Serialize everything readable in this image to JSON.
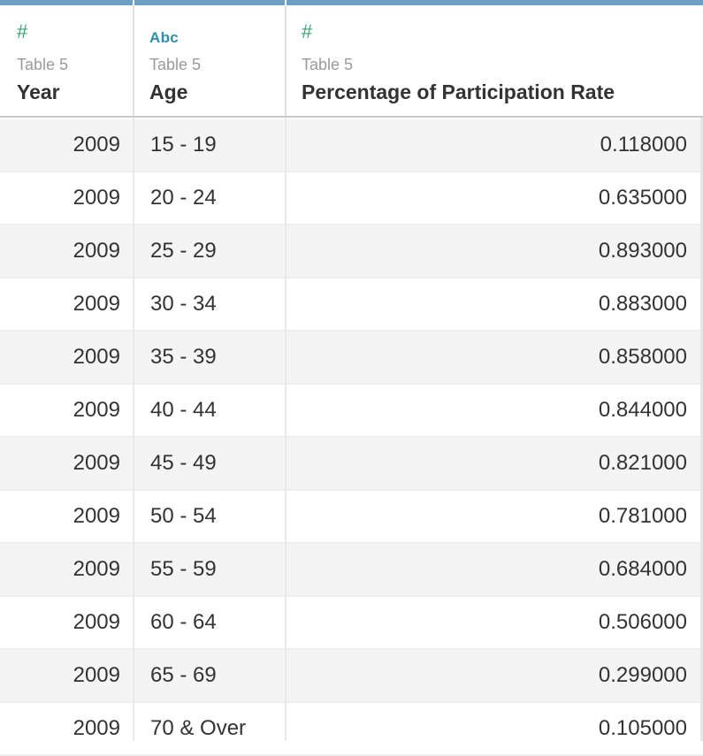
{
  "columns": [
    {
      "type_icon": "#",
      "source": "Table 5",
      "name": "Year"
    },
    {
      "type_icon": "Abc",
      "source": "Table 5",
      "name": "Age"
    },
    {
      "type_icon": "#",
      "source": "Table 5",
      "name": "Percentage of Participation Rate"
    }
  ],
  "rows": [
    {
      "year": "2009",
      "age": "15 - 19",
      "rate": "0.118000"
    },
    {
      "year": "2009",
      "age": "20 - 24",
      "rate": "0.635000"
    },
    {
      "year": "2009",
      "age": "25 - 29",
      "rate": "0.893000"
    },
    {
      "year": "2009",
      "age": "30 - 34",
      "rate": "0.883000"
    },
    {
      "year": "2009",
      "age": "35 - 39",
      "rate": "0.858000"
    },
    {
      "year": "2009",
      "age": "40 - 44",
      "rate": "0.844000"
    },
    {
      "year": "2009",
      "age": "45 - 49",
      "rate": "0.821000"
    },
    {
      "year": "2009",
      "age": "50 - 54",
      "rate": "0.781000"
    },
    {
      "year": "2009",
      "age": "55 - 59",
      "rate": "0.684000"
    },
    {
      "year": "2009",
      "age": "60 - 64",
      "rate": "0.506000"
    },
    {
      "year": "2009",
      "age": "65 - 69",
      "rate": "0.299000"
    },
    {
      "year": "2009",
      "age": "70 & Over",
      "rate": "0.105000"
    }
  ],
  "colors": {
    "numeric_icon": "#39a275",
    "text_icon": "#2e8fa8",
    "header_bar": "#6c9fc7",
    "alt_row": "#f4f4f4"
  },
  "icons": {
    "numeric": "number-type-icon",
    "text": "string-type-icon"
  }
}
